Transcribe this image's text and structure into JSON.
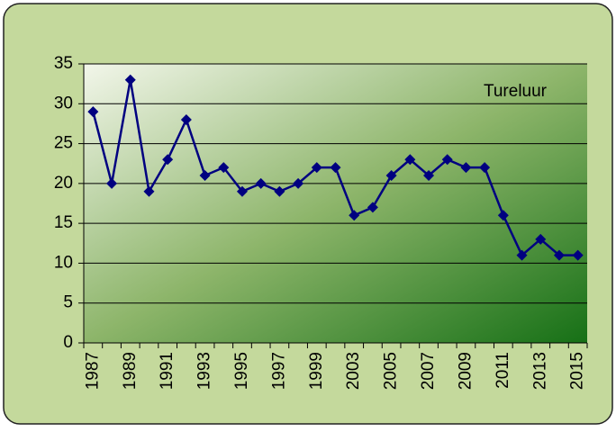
{
  "chart_data": {
    "type": "line",
    "title": "Tureluur",
    "categories": [
      "1987",
      null,
      "1989",
      null,
      "1991",
      null,
      "1993",
      null,
      "1995",
      null,
      "1997",
      null,
      "1999",
      null,
      "2003",
      null,
      "2005",
      null,
      "2007",
      null,
      "2009",
      null,
      "2011",
      null,
      "2013",
      null,
      "2015"
    ],
    "values": [
      29,
      20,
      33,
      19,
      23,
      28,
      21,
      22,
      19,
      20,
      19,
      20,
      22,
      22,
      16,
      17,
      21,
      23,
      21,
      23,
      22,
      22,
      16,
      11,
      13,
      11,
      11
    ],
    "color": "#000080",
    "ylim": [
      0,
      35
    ],
    "yticks": [
      0,
      5,
      10,
      15,
      20,
      25,
      30,
      35
    ],
    "grid": true
  }
}
